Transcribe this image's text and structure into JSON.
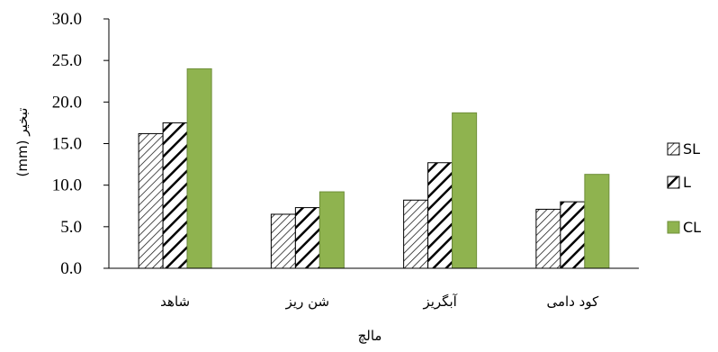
{
  "chart_data": {
    "type": "bar",
    "categories": [
      "شاهد",
      "شن ریز",
      "آبگریز",
      "کود دامی"
    ],
    "series": [
      {
        "name": "SL",
        "values": [
          16.2,
          6.5,
          8.2,
          7.1
        ],
        "pattern": "diagonal-thin",
        "color": "#000000"
      },
      {
        "name": "L",
        "values": [
          17.5,
          7.3,
          12.7,
          8.0
        ],
        "pattern": "diagonal-thick",
        "color": "#000000"
      },
      {
        "name": "CL",
        "values": [
          24.0,
          9.2,
          18.7,
          11.3
        ],
        "pattern": "solid",
        "color": "#8fb34f"
      }
    ],
    "xlabel": "مالچ",
    "ylabel": "تبخیر (mm)",
    "ylim": [
      0,
      30
    ],
    "yticks": [
      "0.0",
      "5.0",
      "10.0",
      "15.0",
      "20.0",
      "25.0",
      "30.0"
    ],
    "grid": false,
    "legend": "right"
  }
}
